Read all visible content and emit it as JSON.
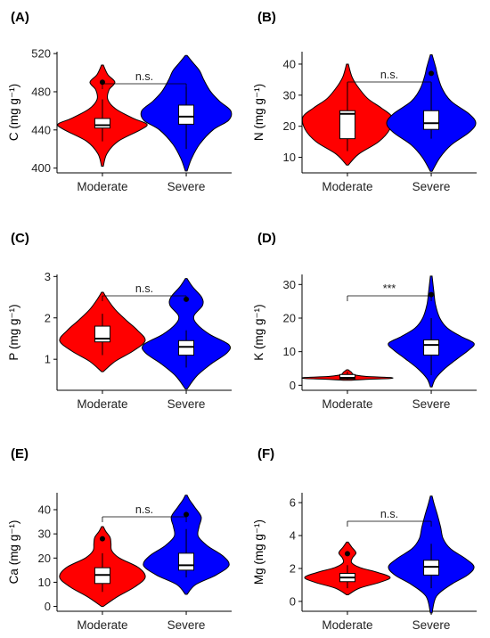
{
  "figure": {
    "panels_layout": "3 rows x 2 columns"
  },
  "colors": {
    "moderate": "#ff0000",
    "severe": "#0000ff",
    "box_fill": "#ffffff",
    "outline": "#000000"
  },
  "chart_data": [
    {
      "type": "violin",
      "panel_label": "(A)",
      "ylabel": "C (mg g⁻¹)",
      "categories": [
        "Moderate",
        "Severe"
      ],
      "yticks": [
        400,
        440,
        480,
        520
      ],
      "ylim": [
        395,
        522
      ],
      "significance": "n.s.",
      "groups": [
        {
          "name": "Moderate",
          "color": "#ff0000",
          "violin_range": [
            402,
            508
          ],
          "q1": 442,
          "median": 445,
          "q3": 452,
          "whisker_low": 428,
          "whisker_high": 472,
          "outliers": [
            490
          ],
          "density": [
            [
              402,
              0.02
            ],
            [
              415,
              0.1
            ],
            [
              428,
              0.35
            ],
            [
              440,
              0.85
            ],
            [
              446,
              1.0
            ],
            [
              452,
              0.7
            ],
            [
              462,
              0.3
            ],
            [
              472,
              0.12
            ],
            [
              482,
              0.15
            ],
            [
              490,
              0.28
            ],
            [
              498,
              0.12
            ],
            [
              508,
              0.02
            ]
          ]
        },
        {
          "name": "Severe",
          "color": "#0000ff",
          "violin_range": [
            397,
            518
          ],
          "q1": 446,
          "median": 454,
          "q3": 466,
          "whisker_low": 420,
          "whisker_high": 485,
          "outliers": [],
          "density": [
            [
              397,
              0.02
            ],
            [
              410,
              0.12
            ],
            [
              425,
              0.3
            ],
            [
              440,
              0.6
            ],
            [
              450,
              0.95
            ],
            [
              460,
              1.0
            ],
            [
              470,
              0.75
            ],
            [
              480,
              0.55
            ],
            [
              492,
              0.4
            ],
            [
              502,
              0.3
            ],
            [
              510,
              0.16
            ],
            [
              518,
              0.02
            ]
          ]
        }
      ]
    },
    {
      "type": "violin",
      "panel_label": "(B)",
      "ylabel": "N (mg g⁻¹)",
      "categories": [
        "Moderate",
        "Severe"
      ],
      "yticks": [
        10,
        20,
        30,
        40
      ],
      "ylim": [
        5,
        44
      ],
      "significance": "n.s.",
      "groups": [
        {
          "name": "Moderate",
          "color": "#ff0000",
          "violin_range": [
            7.5,
            40
          ],
          "q1": 16,
          "median": 24,
          "q3": 25,
          "whisker_low": 12,
          "whisker_high": 34,
          "outliers": [],
          "density": [
            [
              7.5,
              0.02
            ],
            [
              11,
              0.25
            ],
            [
              15,
              0.7
            ],
            [
              19,
              0.95
            ],
            [
              23,
              1.0
            ],
            [
              26,
              0.75
            ],
            [
              29,
              0.45
            ],
            [
              33,
              0.22
            ],
            [
              36,
              0.1
            ],
            [
              40,
              0.02
            ]
          ]
        },
        {
          "name": "Severe",
          "color": "#0000ff",
          "violin_range": [
            5.5,
            43
          ],
          "q1": 19,
          "median": 21,
          "q3": 25,
          "whisker_low": 16,
          "whisker_high": 34,
          "outliers": [
            37
          ],
          "density": [
            [
              5.5,
              0.02
            ],
            [
              10,
              0.2
            ],
            [
              14,
              0.45
            ],
            [
              18,
              0.85
            ],
            [
              21,
              1.0
            ],
            [
              24,
              0.85
            ],
            [
              28,
              0.45
            ],
            [
              32,
              0.25
            ],
            [
              36,
              0.15
            ],
            [
              39,
              0.1
            ],
            [
              43,
              0.02
            ]
          ]
        }
      ]
    },
    {
      "type": "violin",
      "panel_label": "(C)",
      "ylabel": "P (mg g⁻¹)",
      "categories": [
        "Moderate",
        "Severe"
      ],
      "yticks": [
        1,
        2,
        3
      ],
      "ylim": [
        0.25,
        3.05
      ],
      "significance": "n.s.",
      "groups": [
        {
          "name": "Moderate",
          "color": "#ff0000",
          "violin_range": [
            0.7,
            2.62
          ],
          "q1": 1.42,
          "median": 1.5,
          "q3": 1.8,
          "whisker_low": 1.1,
          "whisker_high": 2.1,
          "outliers": [],
          "density": [
            [
              0.7,
              0.02
            ],
            [
              0.95,
              0.3
            ],
            [
              1.2,
              0.72
            ],
            [
              1.45,
              1.0
            ],
            [
              1.7,
              0.82
            ],
            [
              1.95,
              0.55
            ],
            [
              2.2,
              0.3
            ],
            [
              2.45,
              0.12
            ],
            [
              2.62,
              0.02
            ]
          ]
        },
        {
          "name": "Severe",
          "color": "#0000ff",
          "violin_range": [
            0.28,
            2.95
          ],
          "q1": 1.1,
          "median": 1.3,
          "q3": 1.45,
          "whisker_low": 0.8,
          "whisker_high": 1.7,
          "outliers": [
            2.45
          ],
          "density": [
            [
              0.28,
              0.02
            ],
            [
              0.6,
              0.25
            ],
            [
              0.9,
              0.6
            ],
            [
              1.15,
              0.95
            ],
            [
              1.35,
              1.0
            ],
            [
              1.6,
              0.55
            ],
            [
              1.85,
              0.25
            ],
            [
              2.05,
              0.18
            ],
            [
              2.3,
              0.38
            ],
            [
              2.5,
              0.36
            ],
            [
              2.75,
              0.15
            ],
            [
              2.95,
              0.02
            ]
          ]
        }
      ]
    },
    {
      "type": "violin",
      "panel_label": "(D)",
      "ylabel": "K (mg g⁻¹)",
      "categories": [
        "Moderate",
        "Severe"
      ],
      "yticks": [
        0,
        10,
        20,
        30
      ],
      "ylim": [
        -1.5,
        33
      ],
      "significance": "***",
      "groups": [
        {
          "name": "Moderate",
          "color": "#ff0000",
          "violin_range": [
            1.5,
            4.6
          ],
          "q1": 1.9,
          "median": 2.2,
          "q3": 3.2,
          "whisker_low": 1.7,
          "whisker_high": 4.0,
          "outliers": [],
          "density": [
            [
              1.5,
              0.08
            ],
            [
              1.8,
              0.5
            ],
            [
              2.0,
              1.0
            ],
            [
              2.3,
              1.0
            ],
            [
              2.6,
              0.45
            ],
            [
              3.0,
              0.2
            ],
            [
              3.4,
              0.12
            ],
            [
              3.8,
              0.1
            ],
            [
              4.2,
              0.06
            ],
            [
              4.6,
              0.02
            ]
          ]
        },
        {
          "name": "Severe",
          "color": "#0000ff",
          "violin_range": [
            -0.5,
            32.5
          ],
          "q1": 9,
          "median": 12,
          "q3": 13.5,
          "whisker_low": 3,
          "whisker_high": 20,
          "outliers": [
            27
          ],
          "density": [
            [
              -0.5,
              0.02
            ],
            [
              2,
              0.1
            ],
            [
              5,
              0.32
            ],
            [
              8,
              0.62
            ],
            [
              10.5,
              0.88
            ],
            [
              12.5,
              1.0
            ],
            [
              14.5,
              0.7
            ],
            [
              17,
              0.38
            ],
            [
              20,
              0.2
            ],
            [
              24,
              0.1
            ],
            [
              28,
              0.06
            ],
            [
              32.5,
              0.02
            ]
          ]
        }
      ]
    },
    {
      "type": "violin",
      "panel_label": "(E)",
      "ylabel": "Ca (mg g⁻¹)",
      "categories": [
        "Moderate",
        "Severe"
      ],
      "yticks": [
        0,
        10,
        20,
        30,
        40
      ],
      "ylim": [
        -2,
        47
      ],
      "significance": "n.s.",
      "groups": [
        {
          "name": "Moderate",
          "color": "#ff0000",
          "violin_range": [
            0,
            33
          ],
          "q1": 9.5,
          "median": 13,
          "q3": 16,
          "whisker_low": 6,
          "whisker_high": 22,
          "outliers": [
            28
          ],
          "density": [
            [
              0,
              0.02
            ],
            [
              4,
              0.35
            ],
            [
              8,
              0.75
            ],
            [
              12,
              1.0
            ],
            [
              16,
              0.85
            ],
            [
              20,
              0.4
            ],
            [
              23,
              0.22
            ],
            [
              26,
              0.2
            ],
            [
              28.5,
              0.18
            ],
            [
              31,
              0.08
            ],
            [
              33,
              0.02
            ]
          ]
        },
        {
          "name": "Severe",
          "color": "#0000ff",
          "violin_range": [
            5,
            46
          ],
          "q1": 15,
          "median": 17,
          "q3": 22,
          "whisker_low": 12,
          "whisker_high": 32,
          "outliers": [
            38
          ],
          "density": [
            [
              5,
              0.02
            ],
            [
              9,
              0.22
            ],
            [
              13,
              0.7
            ],
            [
              17,
              1.0
            ],
            [
              21,
              0.85
            ],
            [
              25,
              0.5
            ],
            [
              29,
              0.28
            ],
            [
              33,
              0.3
            ],
            [
              37,
              0.35
            ],
            [
              41,
              0.2
            ],
            [
              44,
              0.08
            ],
            [
              46,
              0.02
            ]
          ]
        }
      ]
    },
    {
      "type": "violin",
      "panel_label": "(F)",
      "ylabel": "Mg (mg g⁻¹)",
      "categories": [
        "Moderate",
        "Severe"
      ],
      "yticks": [
        0,
        2,
        4,
        6
      ],
      "ylim": [
        -0.6,
        6.6
      ],
      "significance": "n.s.",
      "groups": [
        {
          "name": "Moderate",
          "color": "#ff0000",
          "violin_range": [
            0.4,
            3.6
          ],
          "q1": 1.2,
          "median": 1.45,
          "q3": 1.7,
          "whisker_low": 0.8,
          "whisker_high": 2.2,
          "outliers": [
            2.9
          ],
          "density": [
            [
              0.4,
              0.02
            ],
            [
              0.8,
              0.28
            ],
            [
              1.15,
              0.75
            ],
            [
              1.45,
              1.0
            ],
            [
              1.75,
              0.72
            ],
            [
              2.05,
              0.3
            ],
            [
              2.35,
              0.1
            ],
            [
              2.65,
              0.12
            ],
            [
              2.95,
              0.2
            ],
            [
              3.3,
              0.1
            ],
            [
              3.6,
              0.02
            ]
          ]
        },
        {
          "name": "Severe",
          "color": "#0000ff",
          "violin_range": [
            -0.7,
            6.4
          ],
          "q1": 1.6,
          "median": 2.1,
          "q3": 2.5,
          "whisker_low": 0.8,
          "whisker_high": 3.5,
          "outliers": [],
          "density": [
            [
              -0.7,
              0.02
            ],
            [
              0.3,
              0.12
            ],
            [
              1.0,
              0.45
            ],
            [
              1.6,
              0.85
            ],
            [
              2.1,
              1.0
            ],
            [
              2.6,
              0.8
            ],
            [
              3.2,
              0.45
            ],
            [
              3.8,
              0.28
            ],
            [
              4.5,
              0.22
            ],
            [
              5.2,
              0.15
            ],
            [
              5.9,
              0.07
            ],
            [
              6.4,
              0.02
            ]
          ]
        }
      ]
    }
  ]
}
